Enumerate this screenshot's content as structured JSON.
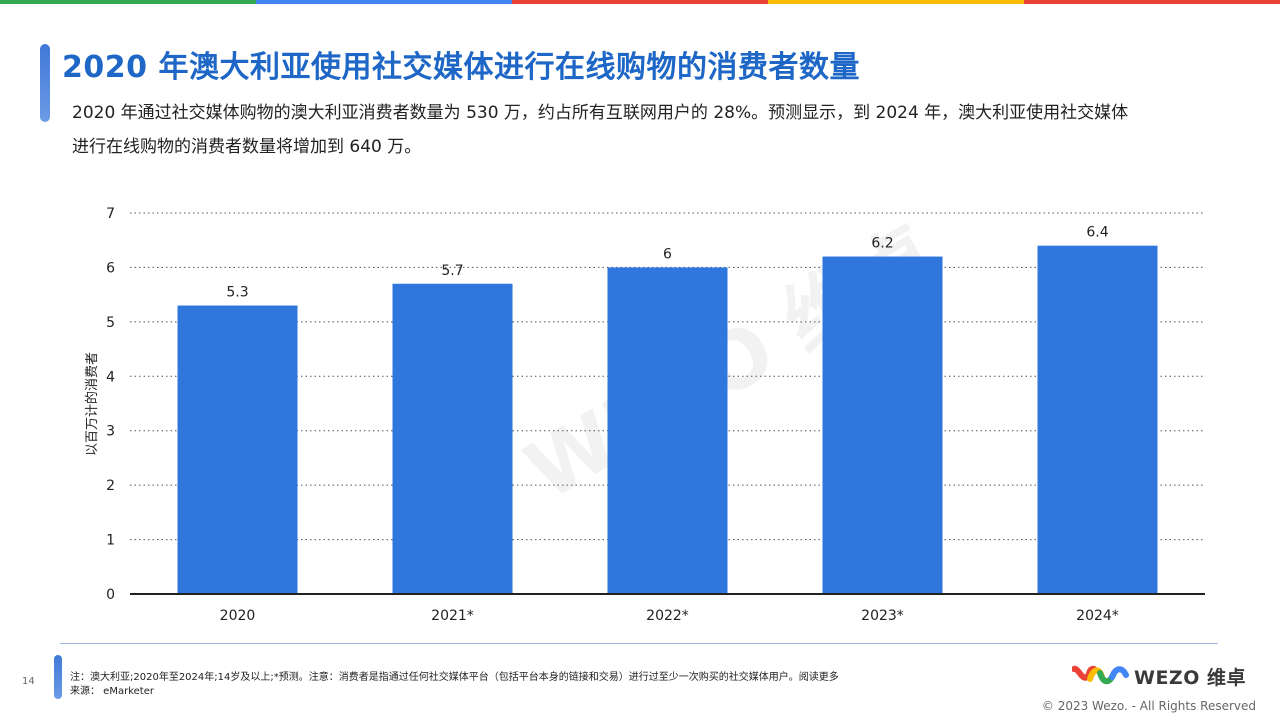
{
  "header": {
    "title": "2020 年澳大利亚使用社交媒体进行在线购物的消费者数量",
    "subtitle": "2020 年通过社交媒体购物的澳大利亚消费者数量为 530 万，约占所有互联网用户的 28%。预测显示，到 2024 年，澳大利亚使用社交媒体进行在线购物的消费者数量将增加到 640 万。"
  },
  "colors": {
    "top_bar": [
      "#34a853",
      "#4285f4",
      "#ea4335",
      "#fbbc05",
      "#ea4335"
    ],
    "bar": "#2f76dd",
    "title": "#1f67c6"
  },
  "chart_data": {
    "type": "bar",
    "categories": [
      "2020",
      "2021*",
      "2022*",
      "2023*",
      "2024*"
    ],
    "values": [
      5.3,
      5.7,
      6,
      6.2,
      6.4
    ],
    "value_labels": [
      "5.3",
      "5.7",
      "6",
      "6.2",
      "6.4"
    ],
    "title": "",
    "xlabel": "",
    "ylabel": "以百万计的消费者",
    "ylim": [
      0,
      7
    ],
    "yticks": [
      0,
      1,
      2,
      3,
      4,
      5,
      6,
      7
    ],
    "grid": "dotted horizontal",
    "legend": "none"
  },
  "watermark": "WEZO 维卓",
  "footer": {
    "page_number": "14",
    "note_line1": "注：澳大利亚;2020年至2024年;14岁及以上;*预测。注意：消费者是指通过任何社交媒体平台（包括平台本身的链接和交易）进行过至少一次购买的社交媒体用户。阅读更多",
    "note_line2": "来源：  eMarketer",
    "logo_text": "WEZO 维卓",
    "copyright": "© 2023 Wezo. - All Rights Reserved"
  }
}
